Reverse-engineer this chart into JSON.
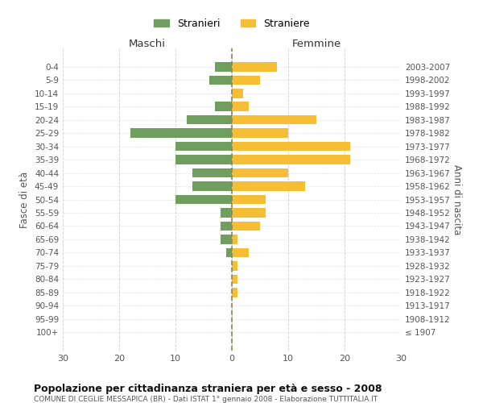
{
  "age_groups": [
    "100+",
    "95-99",
    "90-94",
    "85-89",
    "80-84",
    "75-79",
    "70-74",
    "65-69",
    "60-64",
    "55-59",
    "50-54",
    "45-49",
    "40-44",
    "35-39",
    "30-34",
    "25-29",
    "20-24",
    "15-19",
    "10-14",
    "5-9",
    "0-4"
  ],
  "birth_years": [
    "≤ 1907",
    "1908-1912",
    "1913-1917",
    "1918-1922",
    "1923-1927",
    "1928-1932",
    "1933-1937",
    "1938-1942",
    "1943-1947",
    "1948-1952",
    "1953-1957",
    "1958-1962",
    "1963-1967",
    "1968-1972",
    "1973-1977",
    "1978-1982",
    "1983-1987",
    "1988-1992",
    "1993-1997",
    "1998-2002",
    "2003-2007"
  ],
  "males": [
    0,
    0,
    0,
    0,
    0,
    0,
    1,
    2,
    2,
    2,
    10,
    7,
    7,
    10,
    10,
    18,
    8,
    3,
    0,
    4,
    3
  ],
  "females": [
    0,
    0,
    0,
    1,
    1,
    1,
    3,
    1,
    5,
    6,
    6,
    13,
    10,
    21,
    21,
    10,
    15,
    3,
    2,
    5,
    8
  ],
  "male_color": "#6f9e5e",
  "female_color": "#f5be35",
  "grid_color": "#cccccc",
  "dashed_line_color": "#888855",
  "title": "Popolazione per cittadinanza straniera per età e sesso - 2008",
  "subtitle": "COMUNE DI CEGLIE MESSAPICA (BR) - Dati ISTAT 1° gennaio 2008 - Elaborazione TUTTITALIA.IT",
  "xlabel_left": "Maschi",
  "xlabel_right": "Femmine",
  "ylabel_left": "Fasce di età",
  "ylabel_right": "Anni di nascita",
  "legend_male": "Stranieri",
  "legend_female": "Straniere",
  "xlim": 30,
  "background_color": "#ffffff"
}
